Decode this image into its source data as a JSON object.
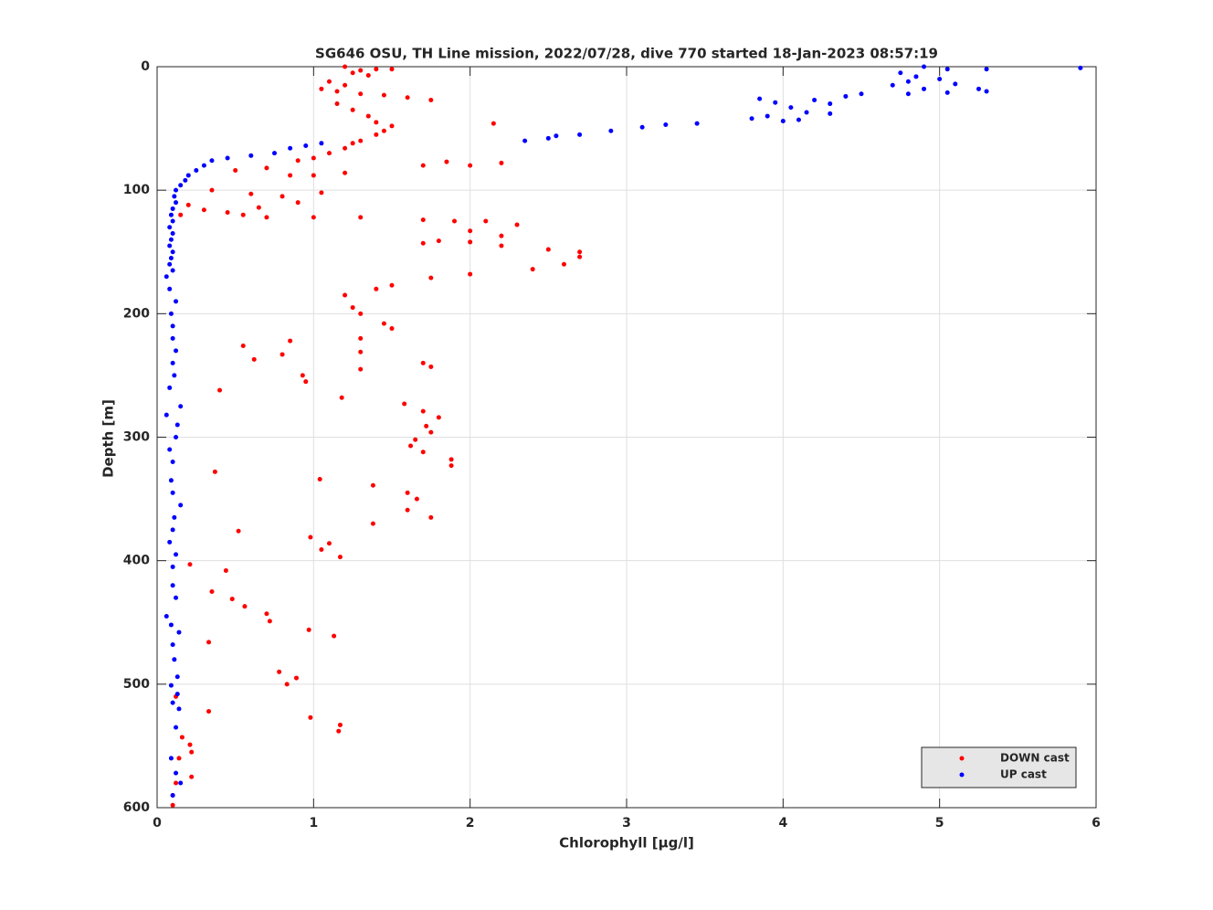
{
  "chart_data": {
    "type": "scatter",
    "title": "SG646 OSU, TH Line mission, 2022/07/28, dive 770 started 18-Jan-2023 08:57:19",
    "x_label": "Chlorophyll [μg/l]",
    "y_label": "Depth [m]",
    "xlim": [
      0,
      6
    ],
    "xticks": [
      0,
      1,
      2,
      3,
      4,
      5,
      6
    ],
    "ylim": [
      0,
      600
    ],
    "yticks": [
      0,
      100,
      200,
      300,
      400,
      500,
      600
    ],
    "y_reversed": true,
    "grid": true,
    "legend": "lower right",
    "series": [
      {
        "name": "DOWN cast",
        "color": "#ff0000",
        "x": [
          1.2,
          1.3,
          1.4,
          1.5,
          1.25,
          1.35,
          1.1,
          1.2,
          1.05,
          1.15,
          1.3,
          1.45,
          1.6,
          1.75,
          1.15,
          1.25,
          1.35,
          1.4,
          1.5,
          1.45,
          1.4,
          1.3,
          1.25,
          1.2,
          1.1,
          1.0,
          0.9,
          2.15,
          1.7,
          1.85,
          2.0,
          2.2,
          0.5,
          0.7,
          0.85,
          1.0,
          1.2,
          0.35,
          0.6,
          0.8,
          1.05,
          0.2,
          0.3,
          0.45,
          0.65,
          0.9,
          0.15,
          0.55,
          0.7,
          1.0,
          1.3,
          1.7,
          1.9,
          2.1,
          2.3,
          2.0,
          2.2,
          1.8,
          1.7,
          2.0,
          2.2,
          2.5,
          2.7,
          2.7,
          2.6,
          2.4,
          2.0,
          1.75,
          1.5,
          1.4,
          1.2,
          1.25,
          1.3,
          1.45,
          1.5,
          0.85,
          0.55,
          1.3,
          1.3,
          0.8,
          0.62,
          1.7,
          1.75,
          1.3,
          0.93,
          0.95,
          0.4,
          1.18,
          1.58,
          1.7,
          1.8,
          1.72,
          1.75,
          1.65,
          1.62,
          1.7,
          1.88,
          1.88,
          0.37,
          1.04,
          1.38,
          1.6,
          1.66,
          1.6,
          1.75,
          1.38,
          0.52,
          0.98,
          1.1,
          1.05,
          1.17,
          0.21,
          0.44,
          0.35,
          0.48,
          0.56,
          0.7,
          0.72,
          0.97,
          1.13,
          0.33,
          0.78,
          0.89,
          0.83,
          0.12,
          0.33,
          0.98,
          1.17,
          1.16,
          0.16,
          0.21,
          0.22,
          0.14,
          0.22,
          0.12,
          0.1,
          0.1
        ],
        "values": [
          0,
          3,
          2,
          2,
          5,
          7,
          12,
          15,
          18,
          20,
          22,
          23,
          25,
          27,
          30,
          35,
          40,
          45,
          48,
          52,
          55,
          60,
          62,
          66,
          70,
          74,
          76,
          46,
          80,
          77,
          80,
          78,
          84,
          82,
          88,
          88,
          86,
          100,
          103,
          105,
          102,
          112,
          116,
          118,
          114,
          110,
          120,
          120,
          122,
          122,
          122,
          124,
          125,
          125,
          128,
          133,
          137,
          141,
          143,
          142,
          145,
          148,
          150,
          154,
          160,
          164,
          168,
          171,
          177,
          180,
          185,
          195,
          200,
          208,
          212,
          222,
          226,
          220,
          231,
          233,
          237,
          240,
          243,
          245,
          250,
          255,
          262,
          268,
          273,
          279,
          284,
          291,
          296,
          302,
          307,
          312,
          318,
          323,
          328,
          334,
          339,
          345,
          350,
          359,
          365,
          370,
          376,
          381,
          386,
          391,
          397,
          403,
          408,
          425,
          431,
          437,
          443,
          449,
          456,
          461,
          466,
          490,
          495,
          500,
          510,
          522,
          527,
          533,
          538,
          543,
          549,
          555,
          560,
          575,
          580,
          590,
          598
        ]
      },
      {
        "name": "UP cast",
        "color": "#0000ff",
        "x": [
          4.9,
          5.05,
          5.3,
          5.9,
          4.75,
          4.85,
          5.0,
          4.8,
          4.7,
          5.1,
          4.9,
          5.25,
          5.3,
          4.8,
          5.05,
          4.5,
          4.4,
          4.2,
          3.85,
          3.95,
          4.3,
          4.05,
          4.15,
          4.3,
          3.9,
          3.8,
          4.0,
          4.1,
          3.45,
          3.25,
          3.1,
          2.9,
          2.7,
          2.55,
          2.5,
          2.35,
          1.05,
          0.95,
          0.85,
          0.75,
          0.6,
          0.45,
          0.35,
          0.3,
          0.25,
          0.2,
          0.18,
          0.15,
          0.12,
          0.11,
          0.12,
          0.1,
          0.09,
          0.1,
          0.08,
          0.1,
          0.09,
          0.08,
          0.1,
          0.09,
          0.08,
          0.1,
          0.06,
          0.08,
          0.12,
          0.09,
          0.1,
          0.1,
          0.12,
          0.1,
          0.11,
          0.08,
          0.15,
          0.06,
          0.13,
          0.12,
          0.08,
          0.1,
          0.09,
          0.1,
          0.15,
          0.11,
          0.1,
          0.08,
          0.12,
          0.1,
          0.1,
          0.12,
          0.06,
          0.09,
          0.14,
          0.1,
          0.11,
          0.13,
          0.09,
          0.13,
          0.1,
          0.14,
          0.12,
          0.09,
          0.12,
          0.15,
          0.1
        ],
        "values": [
          0,
          2,
          2,
          1,
          5,
          8,
          10,
          12,
          15,
          14,
          18,
          18,
          20,
          22,
          21,
          22,
          24,
          27,
          26,
          29,
          30,
          33,
          37,
          38,
          40,
          42,
          44,
          43,
          46,
          47,
          49,
          52,
          55,
          56,
          58,
          60,
          62,
          64,
          66,
          70,
          72,
          74,
          76,
          80,
          84,
          88,
          92,
          96,
          100,
          105,
          110,
          115,
          120,
          125,
          130,
          135,
          140,
          145,
          150,
          155,
          160,
          165,
          170,
          180,
          190,
          200,
          210,
          220,
          230,
          240,
          250,
          260,
          275,
          282,
          290,
          300,
          310,
          320,
          335,
          345,
          355,
          365,
          375,
          385,
          395,
          405,
          420,
          430,
          445,
          452,
          458,
          468,
          480,
          494,
          501,
          508,
          515,
          520,
          535,
          560,
          572,
          580,
          590
        ]
      }
    ]
  }
}
